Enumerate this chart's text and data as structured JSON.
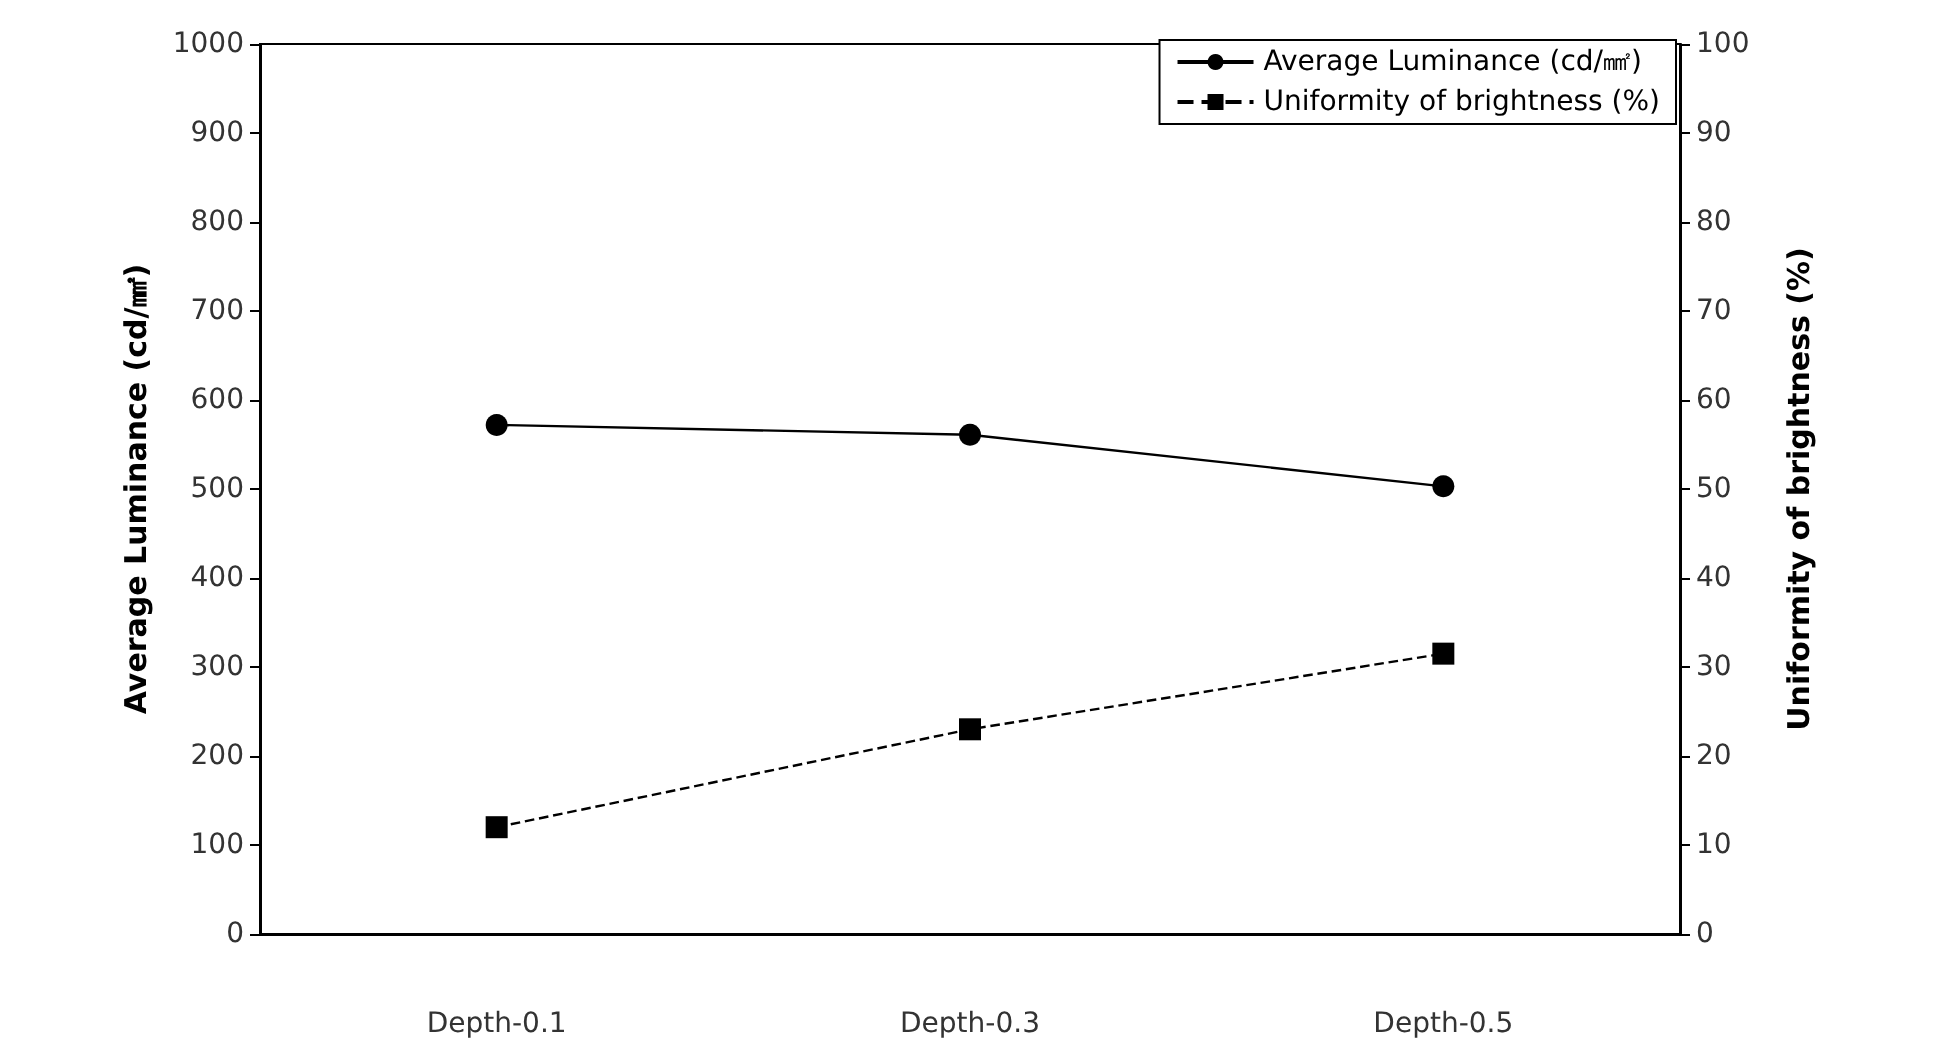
{
  "chart_data": {
    "type": "line",
    "categories": [
      "Depth-0.1",
      "Depth-0.3",
      "Depth-0.5"
    ],
    "ylabel": "Average Luminance (cd/㎟)",
    "y2label": "Uniformity of brightness (%)",
    "ylim": [
      0,
      1000
    ],
    "yticks": [
      0,
      100,
      200,
      300,
      400,
      500,
      600,
      700,
      800,
      900,
      1000
    ],
    "y2lim": [
      0,
      100
    ],
    "y2ticks": [
      0,
      10,
      20,
      30,
      40,
      50,
      60,
      70,
      80,
      90,
      100
    ],
    "grid": false,
    "legend": "top right",
    "series": [
      {
        "name": "Average Luminance (cd/㎟)",
        "color": "#000000",
        "values": [
          572,
          561,
          503
        ],
        "marker": "circle",
        "line_style": "solid"
      },
      {
        "name": "Uniformity of brightness (%)",
        "color": "#000000",
        "values": [
          12,
          23,
          31.5
        ],
        "marker": "square",
        "line_style": "dashed",
        "axis": "y2"
      }
    ]
  }
}
